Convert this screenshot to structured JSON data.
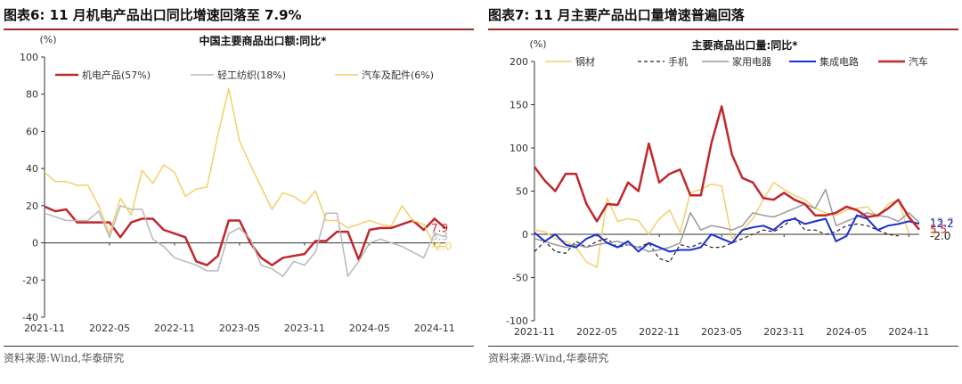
{
  "charts": [
    {
      "figure_title": "图表6:  11 月机电产品出口同比增速回落至 7.9%",
      "source": "资料来源:Wind,华泰研究",
      "chart_data": {
        "type": "line",
        "title": "中国主要商品出口额:同比*",
        "unit": "(%)",
        "ylim": [
          -40,
          100
        ],
        "y_ticks": [
          -40,
          -20,
          0,
          20,
          40,
          60,
          80,
          100
        ],
        "x_start": "2021-11",
        "x_tick_labels": [
          "2021-11",
          "2022-05",
          "2022-11",
          "2023-05",
          "2023-11",
          "2024-05",
          "2024-11"
        ],
        "x_tick_index": [
          0,
          6,
          12,
          18,
          24,
          30,
          36
        ],
        "legend_placement": "top",
        "grid": false,
        "series": [
          {
            "name": "机电产品(57%)",
            "color": "#c0272d",
            "width": 2.5,
            "values": [
              19.5,
              17,
              18,
              11,
              11,
              11,
              11,
              3,
              11,
              13,
              13,
              7,
              5,
              3,
              -10,
              -12,
              -7,
              12,
              12,
              0,
              -8,
              -12,
              -8,
              -7,
              -6,
              1,
              1,
              6,
              6,
              -9,
              7,
              8,
              8,
              10,
              12,
              7,
              13,
              7.9
            ],
            "end_label": "7.9"
          },
          {
            "name": "轻工纺织(18%)",
            "color": "#b8b8b8",
            "width": 1.5,
            "values": [
              16,
              14,
              12,
              12,
              12,
              17,
              3,
              20,
              18,
              18,
              2,
              -2,
              -8,
              -10,
              -12,
              -15,
              -15,
              5,
              8,
              2,
              -12,
              -14,
              -18,
              -10,
              -12,
              -5,
              16,
              16,
              -18,
              -10,
              0,
              2,
              0,
              -2,
              -5,
              -8,
              5,
              3.3
            ],
            "end_label": "3.3"
          },
          {
            "name": "汽车及配件(6%)",
            "color": "#f2d06b",
            "width": 1.5,
            "values": [
              38,
              33,
              33,
              31,
              31,
              20,
              5,
              24,
              15,
              39,
              32,
              42,
              38,
              25,
              29,
              30,
              58,
              83,
              55,
              42,
              30,
              18,
              27,
              25,
              21,
              28,
              12,
              12,
              8,
              10,
              12,
              10,
              9,
              20,
              12,
              10,
              -2,
              -2.0
            ],
            "end_label": "-2.0"
          }
        ]
      }
    },
    {
      "figure_title": "图表7:  11 月主要产品出口量增速普遍回落",
      "source": "资料来源:Wind,华泰研究",
      "chart_data": {
        "type": "line",
        "title": "主要商品出口量:同比*",
        "unit": "(%)",
        "ylim": [
          -100,
          200
        ],
        "y_ticks": [
          -100,
          -50,
          0,
          50,
          100,
          150,
          200
        ],
        "x_start": "2021-11",
        "x_tick_labels": [
          "2021-11",
          "2022-05",
          "2022-11",
          "2023-05",
          "2023-11",
          "2024-05",
          "2024-11"
        ],
        "x_tick_index": [
          0,
          6,
          12,
          18,
          24,
          30,
          36
        ],
        "legend_placement": "top",
        "grid": false,
        "series": [
          {
            "name": "钢材",
            "color": "#f2d06b",
            "width": 1.5,
            "dash": "",
            "values": [
              5,
              3,
              -5,
              -8,
              -15,
              -32,
              -38,
              42,
              15,
              18,
              16,
              0,
              18,
              28,
              2,
              48,
              52,
              58,
              56,
              -5,
              5,
              18,
              40,
              60,
              52,
              45,
              40,
              30,
              25,
              22,
              28,
              30,
              32,
              20,
              35,
              40,
              1
            ],
            "end_label": "1..."
          },
          {
            "name": "手机",
            "color": "#222222",
            "width": 1.2,
            "dash": "4,3",
            "values": [
              -20,
              -8,
              -20,
              -22,
              -8,
              -15,
              -8,
              -5,
              -15,
              -12,
              -15,
              -10,
              -28,
              -32,
              -12,
              -15,
              -10,
              -15,
              -15,
              -10,
              -5,
              0,
              5,
              3,
              10,
              20,
              5,
              5,
              0,
              3,
              10,
              12,
              10,
              5,
              0,
              -2
            ],
            "end_label": "-2.0"
          },
          {
            "name": "家用电器",
            "color": "#9a9a9a",
            "width": 1.5,
            "dash": "",
            "values": [
              -5,
              -8,
              -12,
              -15,
              -12,
              -15,
              -12,
              -10,
              -8,
              -12,
              -15,
              -20,
              -18,
              -15,
              -10,
              25,
              5,
              10,
              8,
              5,
              10,
              25,
              22,
              20,
              25,
              30,
              35,
              30,
              52,
              10,
              15,
              20,
              25,
              22,
              20,
              15,
              25,
              13.7
            ],
            "end_label": "13.7"
          },
          {
            "name": "集成电路",
            "color": "#1a2fd0",
            "width": 2,
            "dash": "",
            "values": [
              2,
              -8,
              0,
              -12,
              -15,
              -5,
              0,
              -10,
              -15,
              -8,
              -20,
              -10,
              -15,
              -20,
              -18,
              -18,
              -15,
              0,
              -5,
              -10,
              5,
              8,
              10,
              5,
              15,
              18,
              12,
              15,
              18,
              -8,
              -2,
              22,
              18,
              5,
              10,
              12,
              15,
              12.2
            ],
            "end_label": "12.2"
          },
          {
            "name": "汽车",
            "color": "#c0272d",
            "width": 2.5,
            "dash": "",
            "values": [
              78,
              62,
              50,
              70,
              70,
              35,
              15,
              35,
              34,
              60,
              50,
              105,
              60,
              70,
              75,
              45,
              45,
              105,
              148,
              92,
              65,
              60,
              42,
              40,
              48,
              40,
              35,
              22,
              22,
              25,
              32,
              28,
              20,
              22,
              30,
              40,
              20,
              5.5
            ],
            "end_label": "5.5"
          }
        ]
      }
    }
  ]
}
